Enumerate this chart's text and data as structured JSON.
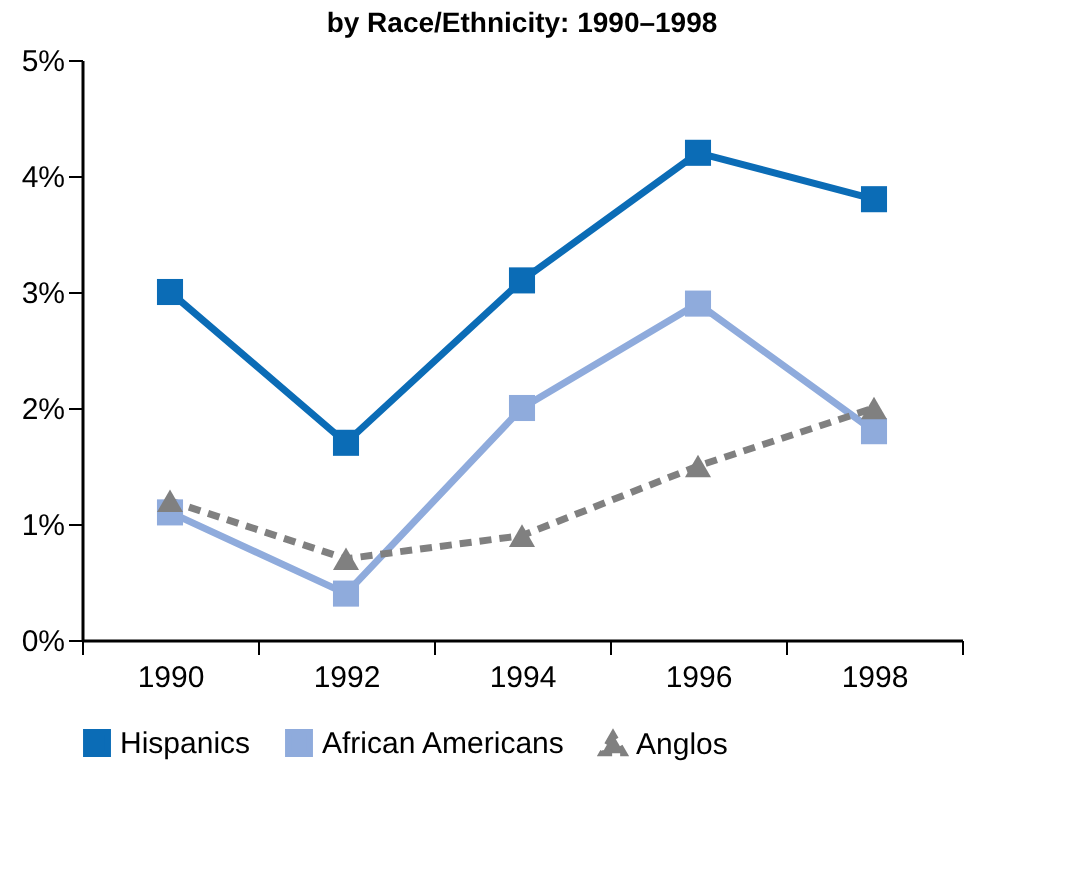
{
  "chart_data": {
    "type": "line",
    "title": "by Race/Ethnicity: 1990–1998",
    "categories": [
      "1990",
      "1992",
      "1994",
      "1996",
      "1998"
    ],
    "series": [
      {
        "name": "Hispanics",
        "color": "#0b6cb6",
        "marker": "square",
        "line_style": "solid",
        "values": [
          3.0,
          1.7,
          3.1,
          4.2,
          3.8
        ]
      },
      {
        "name": "African Americans",
        "color": "#8fabdc",
        "marker": "square",
        "line_style": "solid",
        "values": [
          1.1,
          0.4,
          2.0,
          2.9,
          1.8
        ]
      },
      {
        "name": "Anglos",
        "color": "#808080",
        "marker": "triangle",
        "line_style": "dashed",
        "values": [
          1.2,
          0.7,
          0.9,
          1.5,
          2.0
        ]
      }
    ],
    "ylim": [
      0,
      5
    ],
    "yticks": [
      {
        "value": 0,
        "label": "0%"
      },
      {
        "value": 1,
        "label": "1%"
      },
      {
        "value": 2,
        "label": "2%"
      },
      {
        "value": 3,
        "label": "3%"
      },
      {
        "value": 4,
        "label": "4%"
      },
      {
        "value": 5,
        "label": "5%"
      }
    ],
    "grid": false,
    "legend": "bottom"
  }
}
